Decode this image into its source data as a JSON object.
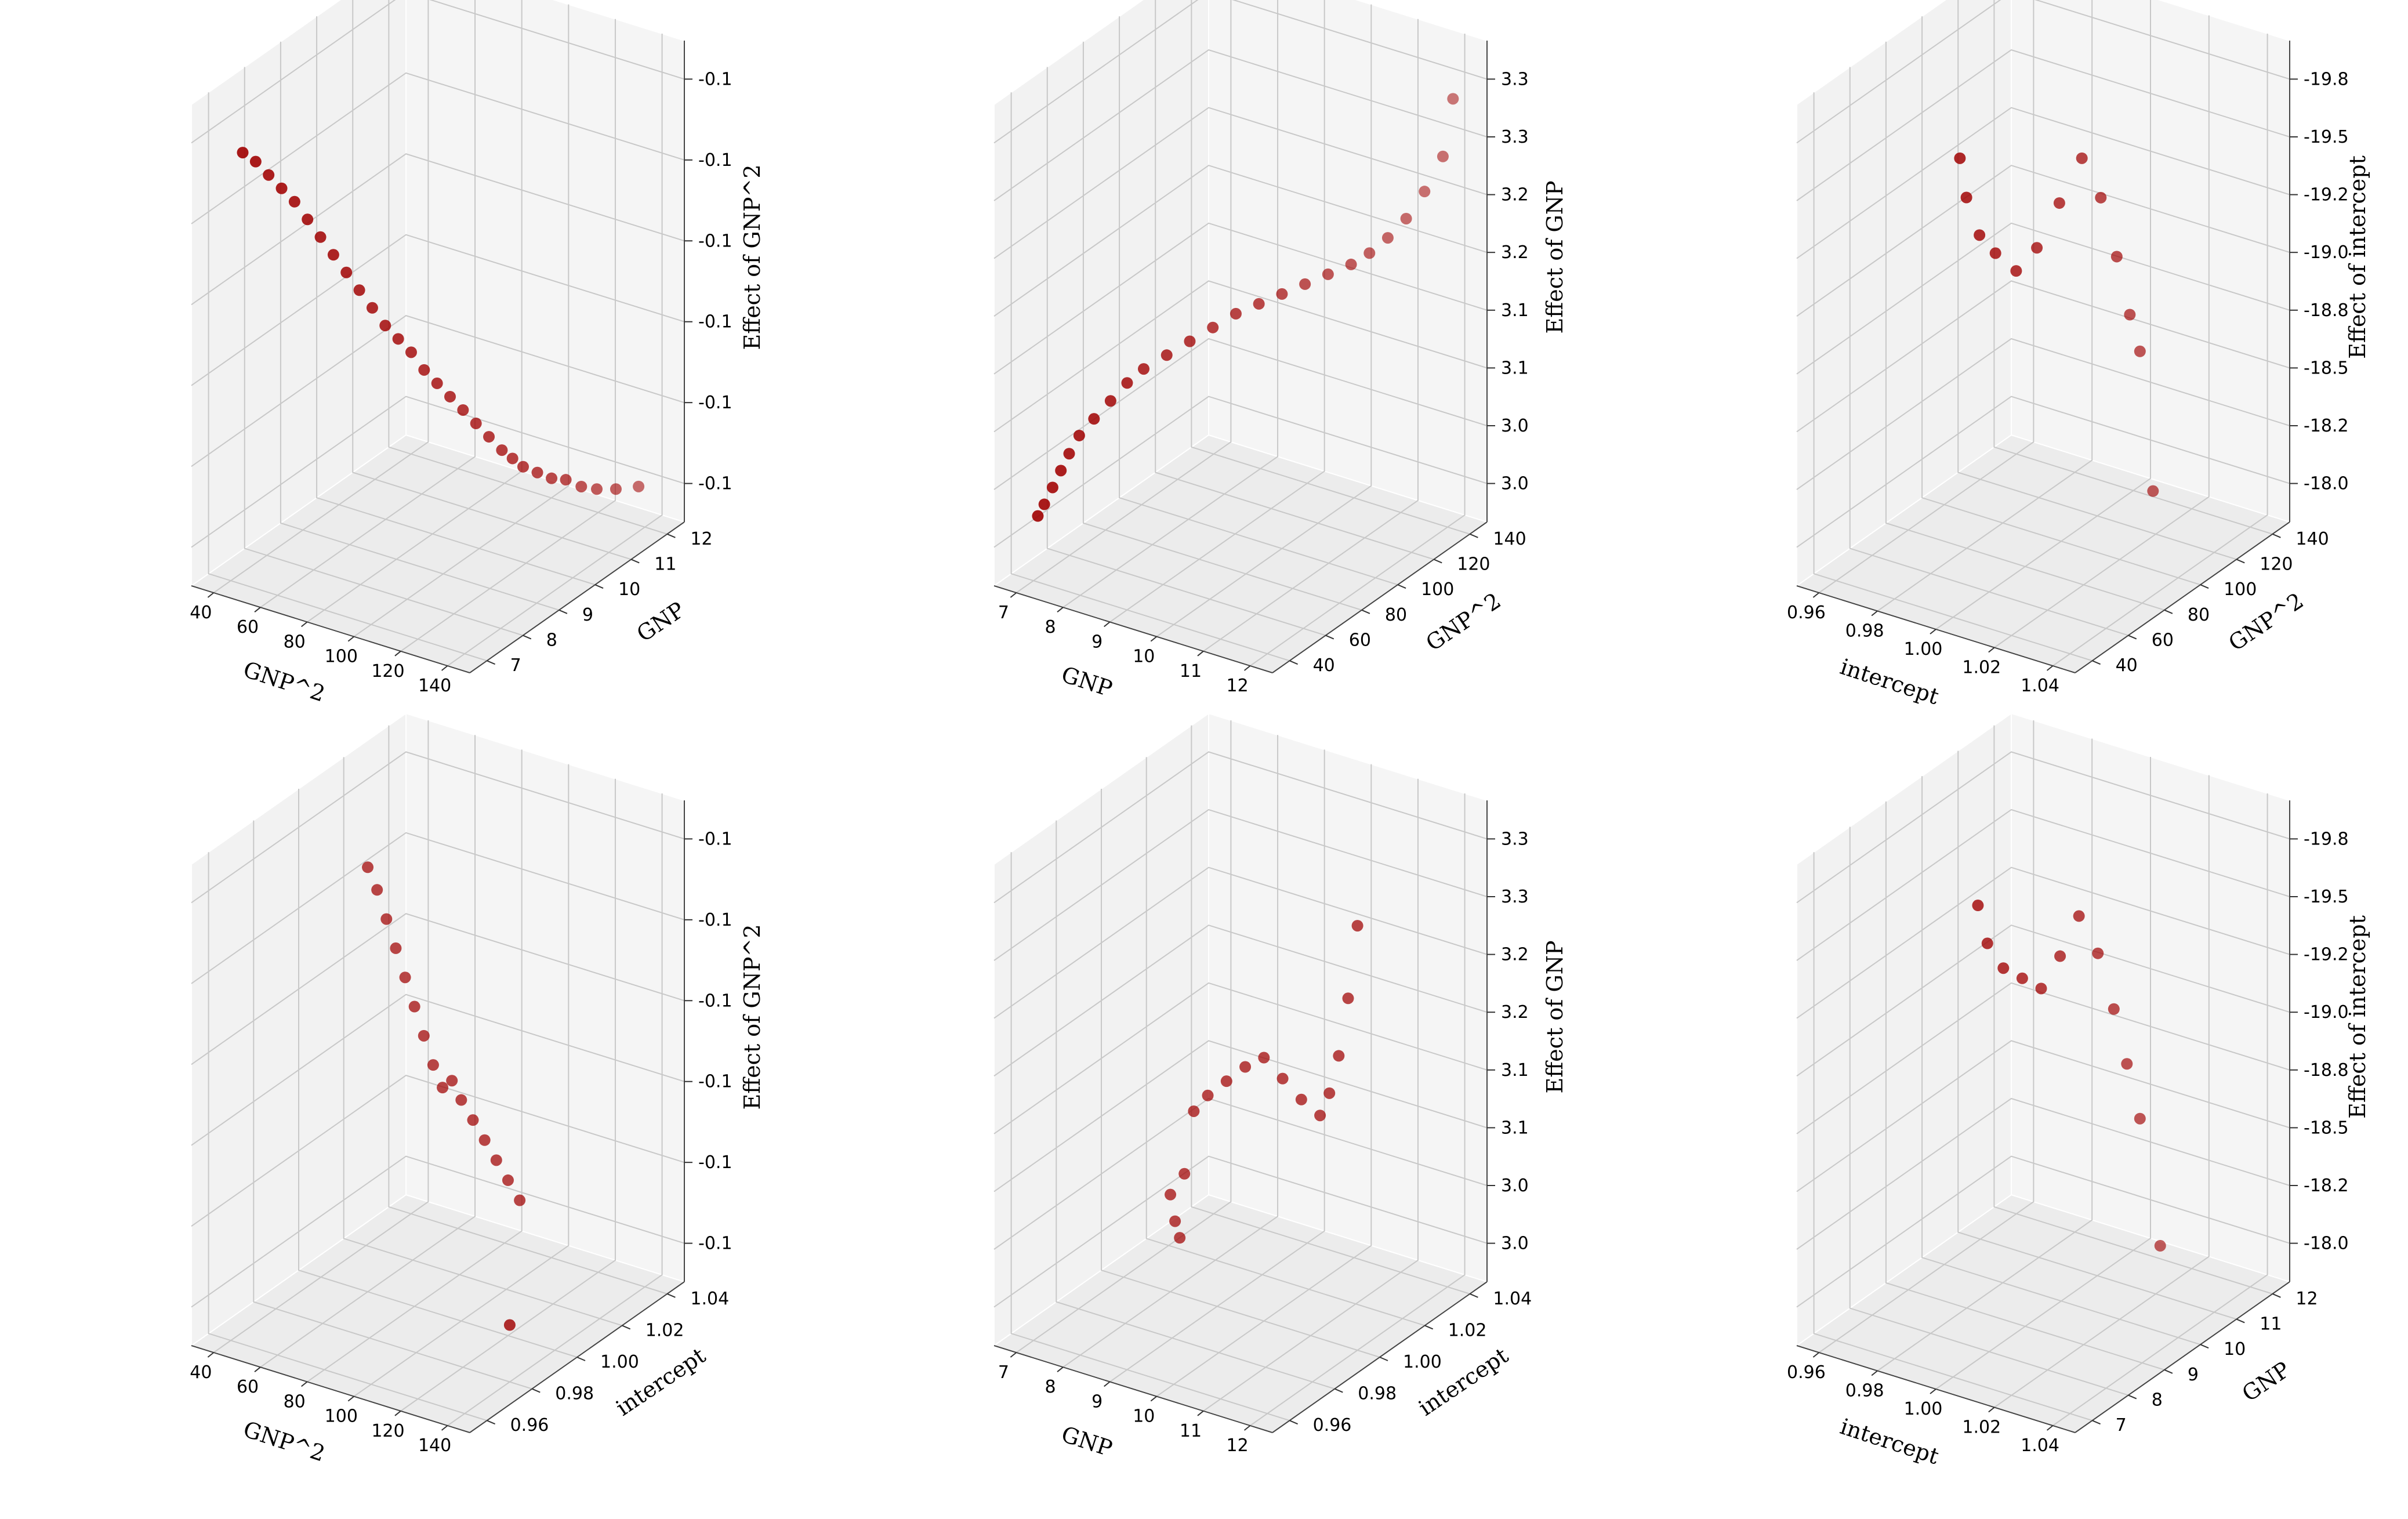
{
  "chart_data": [
    {
      "type": "scatter",
      "xlabel": "GNP^2",
      "ylabel": "GNP",
      "zlabel": "Effect of GNP^2",
      "xticks": [
        "40",
        "60",
        "80",
        "100",
        "120",
        "140"
      ],
      "yticks": [
        "7",
        "8",
        "9",
        "10",
        "11",
        "12"
      ],
      "zticks": [
        "-0.1",
        "-0.1",
        "-0.1",
        "-0.1",
        "-0.1",
        "-0.1"
      ],
      "color": "#a00000",
      "points": [
        [
          42,
          7.2,
          0.85
        ],
        [
          46,
          7.3,
          0.83
        ],
        [
          50,
          7.4,
          0.8
        ],
        [
          54,
          7.5,
          0.77
        ],
        [
          58,
          7.6,
          0.74
        ],
        [
          62,
          7.7,
          0.7
        ],
        [
          66,
          7.8,
          0.66
        ],
        [
          70,
          7.9,
          0.62
        ],
        [
          74,
          8.0,
          0.58
        ],
        [
          78,
          8.1,
          0.54
        ],
        [
          82,
          8.2,
          0.5
        ],
        [
          86,
          8.3,
          0.46
        ],
        [
          90,
          8.4,
          0.43
        ],
        [
          94,
          8.5,
          0.4
        ],
        [
          98,
          8.6,
          0.36
        ],
        [
          102,
          8.7,
          0.33
        ],
        [
          106,
          8.8,
          0.3
        ],
        [
          110,
          8.9,
          0.27
        ],
        [
          114,
          9.0,
          0.24
        ],
        [
          118,
          9.1,
          0.21
        ],
        [
          122,
          9.2,
          0.18
        ],
        [
          125,
          9.3,
          0.16
        ],
        [
          128,
          9.4,
          0.14
        ],
        [
          131,
          9.6,
          0.12
        ],
        [
          134,
          9.8,
          0.1
        ],
        [
          137,
          10.0,
          0.09
        ],
        [
          139,
          10.3,
          0.06
        ],
        [
          141,
          10.6,
          0.04
        ],
        [
          143,
          11.0,
          0.02
        ],
        [
          145,
          11.5,
          0.0
        ]
      ]
    },
    {
      "type": "scatter",
      "xlabel": "GNP",
      "ylabel": "GNP^2",
      "zlabel": "Effect of GNP",
      "xticks": [
        "7",
        "8",
        "9",
        "10",
        "11",
        "12"
      ],
      "yticks": [
        "40",
        "60",
        "80",
        "100",
        "120",
        "140"
      ],
      "zticks": [
        "3.0",
        "3.0",
        "3.1",
        "3.1",
        "3.2",
        "3.2",
        "3.3",
        "3.3"
      ],
      "color": "#a00000",
      "points": [
        [
          6.9,
          45,
          0.05
        ],
        [
          7.0,
          46,
          0.08
        ],
        [
          7.1,
          48,
          0.12
        ],
        [
          7.2,
          50,
          0.16
        ],
        [
          7.3,
          52,
          0.2
        ],
        [
          7.4,
          55,
          0.24
        ],
        [
          7.6,
          58,
          0.28
        ],
        [
          7.8,
          62,
          0.32
        ],
        [
          8.0,
          66,
          0.36
        ],
        [
          8.2,
          70,
          0.39
        ],
        [
          8.5,
          75,
          0.42
        ],
        [
          8.8,
          80,
          0.45
        ],
        [
          9.1,
          85,
          0.48
        ],
        [
          9.4,
          90,
          0.51
        ],
        [
          9.7,
          95,
          0.53
        ],
        [
          10.0,
          100,
          0.55
        ],
        [
          10.3,
          105,
          0.57
        ],
        [
          10.6,
          110,
          0.59
        ],
        [
          10.9,
          115,
          0.61
        ],
        [
          11.1,
          120,
          0.63
        ],
        [
          11.3,
          125,
          0.66
        ],
        [
          11.5,
          130,
          0.7
        ],
        [
          11.7,
          135,
          0.76
        ],
        [
          11.9,
          140,
          0.84
        ],
        [
          12.0,
          143,
          0.98
        ]
      ]
    },
    {
      "type": "scatter",
      "xlabel": "intercept",
      "ylabel": "GNP^2",
      "zlabel": "Effect of intercept",
      "xticks": [
        "0.96",
        "0.98",
        "1.00",
        "1.02",
        "1.04"
      ],
      "yticks": [
        "40",
        "60",
        "80",
        "100",
        "120",
        "140"
      ],
      "zticks": [
        "-18.0",
        "-18.2",
        "-18.5",
        "-18.8",
        "-19.0",
        "-19.2",
        "-19.5",
        "-19.8"
      ],
      "color": "#a00000",
      "points": [
        [
          0.99,
          60,
          -18.75
        ],
        [
          0.991,
          62,
          -18.85
        ],
        [
          0.993,
          66,
          -18.95
        ],
        [
          0.996,
          70,
          -19.0
        ],
        [
          1.0,
          75,
          -19.05
        ],
        [
          1.004,
          80,
          -19.0
        ],
        [
          1.008,
          86,
          -18.9
        ],
        [
          1.012,
          92,
          -18.8
        ],
        [
          1.016,
          96,
          -18.9
        ],
        [
          1.019,
          100,
          -19.05
        ],
        [
          1.021,
          104,
          -19.2
        ],
        [
          1.022,
          108,
          -19.3
        ],
        [
          1.024,
          112,
          -19.65
        ]
      ]
    },
    {
      "type": "scatter",
      "xlabel": "GNP^2",
      "ylabel": "intercept",
      "zlabel": "Effect of GNP^2",
      "xticks": [
        "40",
        "60",
        "80",
        "100",
        "120",
        "140"
      ],
      "yticks": [
        "0.96",
        "0.98",
        "1.00",
        "1.02",
        "1.04"
      ],
      "zticks": [
        "-0.1",
        "-0.1",
        "-0.1",
        "-0.1",
        "-0.1",
        "-0.1"
      ],
      "color": "#a00000",
      "points": [
        [
          60,
          1.0,
          0.92
        ],
        [
          64,
          1.0,
          0.86
        ],
        [
          68,
          1.0,
          0.78
        ],
        [
          72,
          1.0,
          0.7
        ],
        [
          76,
          1.0,
          0.62
        ],
        [
          80,
          1.0,
          0.54
        ],
        [
          84,
          1.0,
          0.46
        ],
        [
          88,
          1.0,
          0.38
        ],
        [
          92,
          1.0,
          0.32
        ],
        [
          96,
          1.0,
          0.35
        ],
        [
          100,
          1.0,
          0.3
        ],
        [
          105,
          1.0,
          0.25
        ],
        [
          110,
          1.0,
          0.2
        ],
        [
          115,
          1.0,
          0.15
        ],
        [
          120,
          1.0,
          0.1
        ],
        [
          125,
          1.0,
          0.05
        ],
        [
          140,
          0.98,
          -0.2
        ]
      ]
    },
    {
      "type": "scatter",
      "xlabel": "GNP",
      "ylabel": "intercept",
      "zlabel": "Effect of GNP",
      "xticks": [
        "7",
        "8",
        "9",
        "10",
        "11",
        "12"
      ],
      "yticks": [
        "0.96",
        "0.98",
        "1.00",
        "1.02",
        "1.04"
      ],
      "zticks": [
        "3.0",
        "3.0",
        "3.1",
        "3.1",
        "3.2",
        "3.2",
        "3.3",
        "3.3"
      ],
      "color": "#a00000",
      "points": [
        [
          8.0,
          1.0,
          0.2
        ],
        [
          8.1,
          1.0,
          0.15
        ],
        [
          8.2,
          1.0,
          0.12
        ],
        [
          8.3,
          1.0,
          0.25
        ],
        [
          8.5,
          1.0,
          0.38
        ],
        [
          8.8,
          1.0,
          0.42
        ],
        [
          9.2,
          1.0,
          0.46
        ],
        [
          9.6,
          1.0,
          0.5
        ],
        [
          10.0,
          1.0,
          0.53
        ],
        [
          10.4,
          1.0,
          0.5
        ],
        [
          10.8,
          1.0,
          0.47
        ],
        [
          11.2,
          1.0,
          0.45
        ],
        [
          11.4,
          1.0,
          0.5
        ],
        [
          11.6,
          1.0,
          0.58
        ],
        [
          11.8,
          1.0,
          0.7
        ],
        [
          12.0,
          1.0,
          0.85
        ]
      ]
    },
    {
      "type": "scatter",
      "xlabel": "intercept",
      "ylabel": "GNP",
      "zlabel": "Effect of intercept",
      "xticks": [
        "0.96",
        "0.98",
        "1.00",
        "1.02",
        "1.04"
      ],
      "yticks": [
        "7",
        "8",
        "9",
        "10",
        "11",
        "12"
      ],
      "zticks": [
        "-18.0",
        "-18.2",
        "-18.5",
        "-18.8",
        "-19.0",
        "-19.2",
        "-19.5",
        "-19.8"
      ],
      "color": "#a00000",
      "points": [
        [
          0.99,
          8.5,
          -18.75
        ],
        [
          0.992,
          8.6,
          -18.85
        ],
        [
          0.995,
          8.8,
          -18.92
        ],
        [
          0.999,
          9.0,
          -18.95
        ],
        [
          1.003,
          9.2,
          -18.98
        ],
        [
          1.007,
          9.4,
          -18.9
        ],
        [
          1.011,
          9.6,
          -18.8
        ],
        [
          1.015,
          9.8,
          -18.9
        ],
        [
          1.018,
          10.0,
          -19.05
        ],
        [
          1.02,
          10.2,
          -19.2
        ],
        [
          1.022,
          10.4,
          -19.35
        ],
        [
          1.024,
          10.8,
          -19.7
        ]
      ]
    }
  ]
}
